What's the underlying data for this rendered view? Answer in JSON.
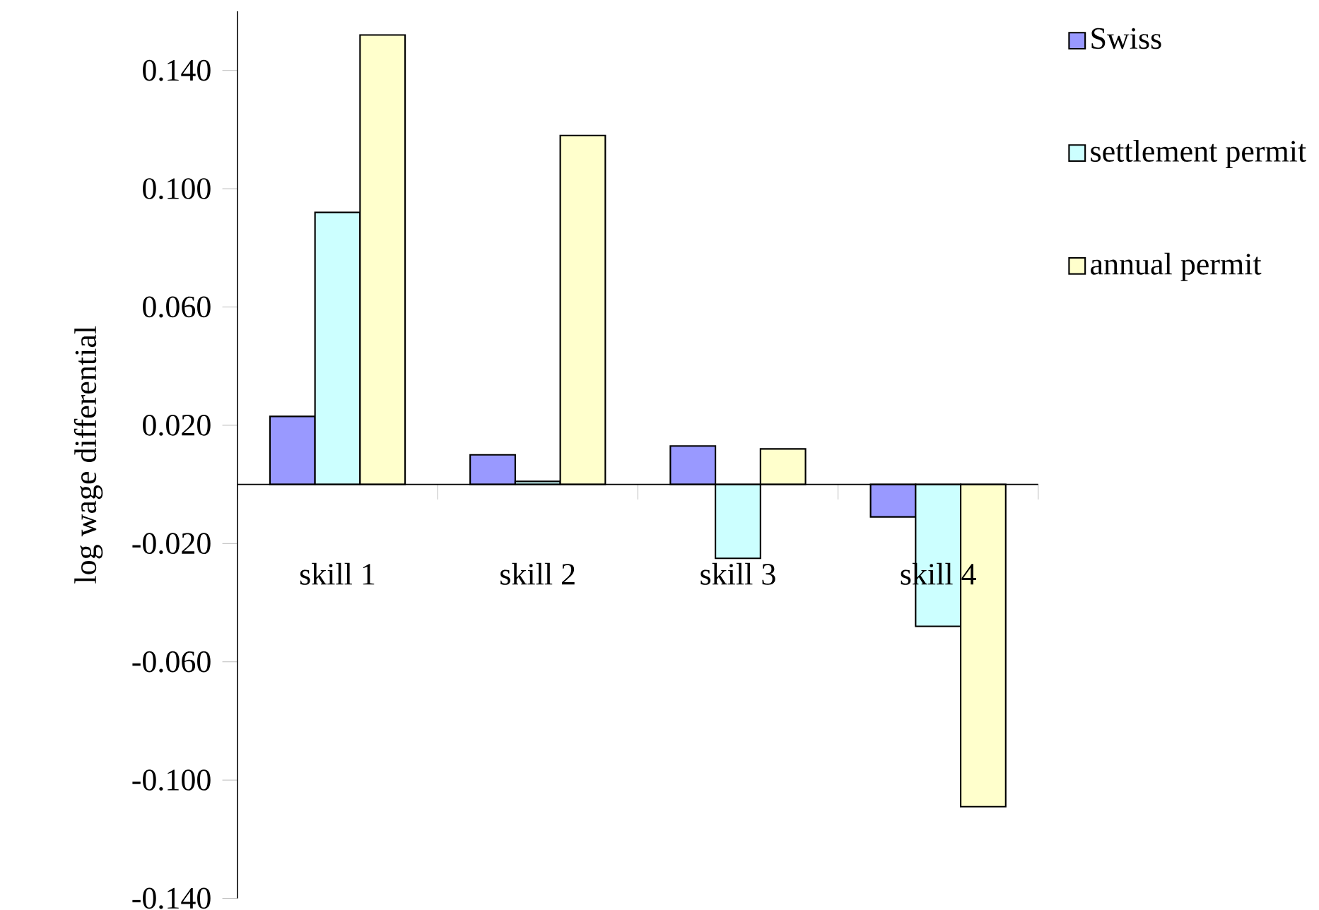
{
  "chart_data": {
    "type": "bar",
    "categories": [
      "skill 1",
      "skill 2",
      "skill 3",
      "skill 4"
    ],
    "ylabel": "log wage differential",
    "series": [
      {
        "name": "Swiss",
        "color": "#9999ff",
        "values": [
          0.023,
          0.01,
          0.013,
          -0.011
        ]
      },
      {
        "name": "settlement permit",
        "color": "#ccffff",
        "values": [
          0.092,
          0.001,
          -0.025,
          -0.048
        ]
      },
      {
        "name": "annual permit",
        "color": "#ffffcc",
        "values": [
          0.152,
          0.118,
          0.012,
          -0.109
        ]
      }
    ],
    "ylim": [
      -0.14,
      0.16
    ],
    "yticks": [
      {
        "value": -0.14,
        "label": "-0.140"
      },
      {
        "value": -0.1,
        "label": "-0.100"
      },
      {
        "value": -0.06,
        "label": "-0.060"
      },
      {
        "value": -0.02,
        "label": "-0.020"
      },
      {
        "value": 0.02,
        "label": "0.020"
      },
      {
        "value": 0.06,
        "label": "0.060"
      },
      {
        "value": 0.1,
        "label": "0.100"
      },
      {
        "value": 0.14,
        "label": "0.140"
      }
    ],
    "grid": false,
    "legend": "top right"
  }
}
